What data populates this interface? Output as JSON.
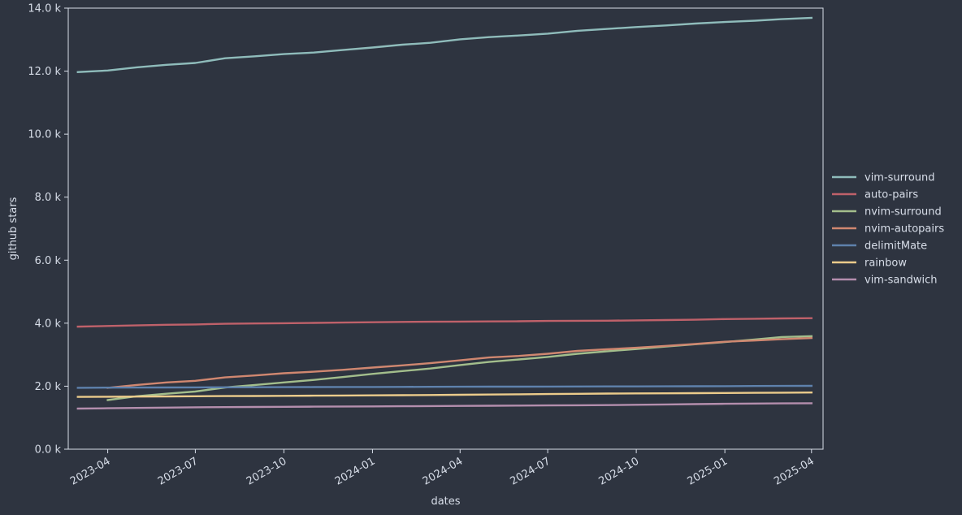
{
  "chart_data": {
    "type": "line",
    "xlabel": "dates",
    "ylabel": "github stars",
    "ylim": [
      0,
      14000
    ],
    "y_ticks": [
      {
        "value": 0,
        "label": "0.0 k"
      },
      {
        "value": 2000,
        "label": "2.0 k"
      },
      {
        "value": 4000,
        "label": "4.0 k"
      },
      {
        "value": 6000,
        "label": "6.0 k"
      },
      {
        "value": 8000,
        "label": "8.0 k"
      },
      {
        "value": 10000,
        "label": "10.0 k"
      },
      {
        "value": 12000,
        "label": "12.0 k"
      },
      {
        "value": 14000,
        "label": "14.0 k"
      }
    ],
    "xlim": [
      "2023-02-19",
      "2025-04-13"
    ],
    "x_ticks": [
      "2023-04",
      "2023-07",
      "2023-10",
      "2024-01",
      "2024-04",
      "2024-07",
      "2024-10",
      "2025-01",
      "2025-04"
    ],
    "grid": false,
    "legend_position": "right",
    "x": [
      "2023-03-01",
      "2023-04-01",
      "2023-05-01",
      "2023-06-01",
      "2023-07-01",
      "2023-08-01",
      "2023-09-01",
      "2023-10-01",
      "2023-11-01",
      "2023-12-01",
      "2024-01-01",
      "2024-02-01",
      "2024-03-01",
      "2024-04-01",
      "2024-05-01",
      "2024-06-01",
      "2024-07-01",
      "2024-08-01",
      "2024-09-01",
      "2024-10-01",
      "2024-11-01",
      "2024-12-01",
      "2025-01-01",
      "2025-02-01",
      "2025-03-01",
      "2025-04-01"
    ],
    "series": [
      {
        "name": "vim-surround",
        "color": "#8fbcbb",
        "values": [
          11970,
          12020,
          12120,
          12200,
          12260,
          12410,
          12470,
          12540,
          12590,
          12670,
          12750,
          12840,
          12900,
          13010,
          13080,
          13130,
          13190,
          13280,
          13340,
          13400,
          13450,
          13510,
          13560,
          13600,
          13650,
          13690
        ]
      },
      {
        "name": "auto-pairs",
        "color": "#bf616a",
        "values": [
          3890,
          3910,
          3930,
          3950,
          3960,
          3980,
          3990,
          4000,
          4010,
          4020,
          4030,
          4040,
          4045,
          4050,
          4055,
          4060,
          4070,
          4075,
          4080,
          4090,
          4100,
          4110,
          4130,
          4140,
          4150,
          4160
        ]
      },
      {
        "name": "nvim-surround",
        "color": "#a3be8c",
        "values": [
          null,
          1560,
          1680,
          1760,
          1830,
          1960,
          2040,
          2120,
          2200,
          2290,
          2390,
          2480,
          2560,
          2670,
          2770,
          2850,
          2930,
          3030,
          3110,
          3180,
          3260,
          3330,
          3400,
          3480,
          3560,
          3590
        ]
      },
      {
        "name": "nvim-autopairs",
        "color": "#d08770",
        "values": [
          null,
          1950,
          2040,
          2120,
          2170,
          2280,
          2340,
          2410,
          2460,
          2520,
          2590,
          2660,
          2730,
          2820,
          2910,
          2960,
          3030,
          3120,
          3170,
          3220,
          3280,
          3340,
          3410,
          3450,
          3490,
          3530
        ]
      },
      {
        "name": "delimitMate",
        "color": "#5e81ac",
        "values": [
          1950,
          1955,
          1958,
          1960,
          1962,
          1965,
          1967,
          1970,
          1972,
          1974,
          1976,
          1978,
          1980,
          1982,
          1984,
          1986,
          1988,
          1990,
          1992,
          1994,
          1996,
          1998,
          2000,
          2005,
          2008,
          2010
        ]
      },
      {
        "name": "rainbow",
        "color": "#ebcb8b",
        "values": [
          1660,
          1665,
          1670,
          1675,
          1680,
          1685,
          1690,
          1695,
          1700,
          1705,
          1710,
          1715,
          1720,
          1728,
          1735,
          1742,
          1750,
          1758,
          1765,
          1770,
          1775,
          1780,
          1785,
          1790,
          1795,
          1800
        ]
      },
      {
        "name": "vim-sandwich",
        "color": "#b48ead",
        "values": [
          1290,
          1300,
          1310,
          1320,
          1330,
          1335,
          1340,
          1345,
          1350,
          1355,
          1360,
          1365,
          1370,
          1375,
          1380,
          1385,
          1390,
          1395,
          1400,
          1410,
          1420,
          1430,
          1440,
          1450,
          1455,
          1460
        ]
      }
    ]
  }
}
